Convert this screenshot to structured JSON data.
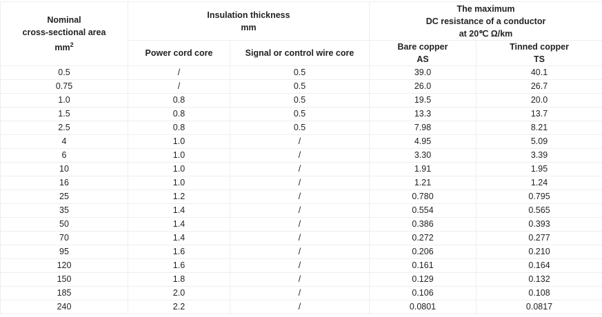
{
  "header": {
    "area": [
      "Nominal",
      "cross-sectional area",
      "mm"
    ],
    "area_sup": "2",
    "insulation": [
      "Insulation thickness",
      "mm"
    ],
    "resistance": [
      "The maximum",
      "DC resistance of a conductor",
      "at 20℃ Ω/km"
    ],
    "power": "Power cord core",
    "signal": "Signal or control wire core",
    "bare": [
      "Bare copper",
      "AS"
    ],
    "tinned": [
      "Tinned copper",
      "TS"
    ]
  },
  "rows": [
    [
      "0.5",
      "/",
      "0.5",
      "39.0",
      "40.1"
    ],
    [
      "0.75",
      "/",
      "0.5",
      "26.0",
      "26.7"
    ],
    [
      "1.0",
      "0.8",
      "0.5",
      "19.5",
      "20.0"
    ],
    [
      "1.5",
      "0.8",
      "0.5",
      "13.3",
      "13.7"
    ],
    [
      "2.5",
      "0.8",
      "0.5",
      "7.98",
      "8.21"
    ],
    [
      "4",
      "1.0",
      "/",
      "4.95",
      "5.09"
    ],
    [
      "6",
      "1.0",
      "/",
      "3.30",
      "3.39"
    ],
    [
      "10",
      "1.0",
      "/",
      "1.91",
      "1.95"
    ],
    [
      "16",
      "1.0",
      "/",
      "1.21",
      "1.24"
    ],
    [
      "25",
      "1.2",
      "/",
      "0.780",
      "0.795"
    ],
    [
      "35",
      "1.4",
      "/",
      "0.554",
      "0.565"
    ],
    [
      "50",
      "1.4",
      "/",
      "0.386",
      "0.393"
    ],
    [
      "70",
      "1.4",
      "/",
      "0.272",
      "0.277"
    ],
    [
      "95",
      "1.6",
      "/",
      "0.206",
      "0.210"
    ],
    [
      "120",
      "1.6",
      "/",
      "0.161",
      "0.164"
    ],
    [
      "150",
      "1.8",
      "/",
      "0.129",
      "0.132"
    ],
    [
      "185",
      "2.0",
      "/",
      "0.106",
      "0.108"
    ],
    [
      "240",
      "2.2",
      "/",
      "0.0801",
      "0.0817"
    ]
  ]
}
